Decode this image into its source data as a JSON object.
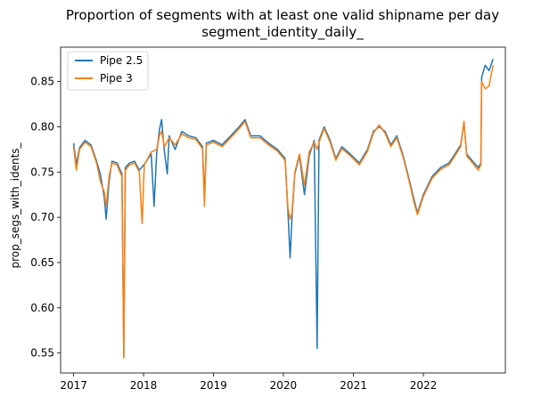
{
  "chart_data": {
    "type": "line",
    "title": "Proportion of segments with at least one valid shipname per day",
    "subtitle": "segment_identity_daily_",
    "xlabel": "",
    "ylabel": "prop_segs_with_idents_",
    "x_ticks": [
      "2017",
      "2018",
      "2019",
      "2020",
      "2021",
      "2022"
    ],
    "y_ticks": [
      "0.55",
      "0.60",
      "0.65",
      "0.70",
      "0.75",
      "0.80",
      "0.85"
    ],
    "xlim": [
      "2016-10-25",
      "2023-03-05"
    ],
    "ylim": [
      0.528,
      0.888
    ],
    "grid": false,
    "legend_position": "top-left",
    "series": [
      {
        "name": "Pipe 2.5",
        "color": "#1f77b4",
        "points": [
          [
            "2017-01-01",
            0.782
          ],
          [
            "2017-01-15",
            0.758
          ],
          [
            "2017-02-01",
            0.777
          ],
          [
            "2017-03-01",
            0.785
          ],
          [
            "2017-04-01",
            0.78
          ],
          [
            "2017-05-01",
            0.762
          ],
          [
            "2017-05-20",
            0.748
          ],
          [
            "2017-06-10",
            0.722
          ],
          [
            "2017-06-20",
            0.698
          ],
          [
            "2017-07-05",
            0.74
          ],
          [
            "2017-07-20",
            0.762
          ],
          [
            "2017-08-15",
            0.76
          ],
          [
            "2017-09-10",
            0.748
          ],
          [
            "2017-09-20",
            0.545
          ],
          [
            "2017-09-28",
            0.755
          ],
          [
            "2017-10-20",
            0.76
          ],
          [
            "2017-11-15",
            0.762
          ],
          [
            "2017-12-10",
            0.752
          ],
          [
            "2018-01-10",
            0.76
          ],
          [
            "2018-02-10",
            0.77
          ],
          [
            "2018-02-25",
            0.712
          ],
          [
            "2018-03-10",
            0.77
          ],
          [
            "2018-03-25",
            0.797
          ],
          [
            "2018-04-05",
            0.808
          ],
          [
            "2018-04-20",
            0.772
          ],
          [
            "2018-05-05",
            0.748
          ],
          [
            "2018-05-15",
            0.79
          ],
          [
            "2018-06-15",
            0.775
          ],
          [
            "2018-07-20",
            0.795
          ],
          [
            "2018-08-25",
            0.79
          ],
          [
            "2018-10-01",
            0.788
          ],
          [
            "2018-11-05",
            0.778
          ],
          [
            "2018-11-15",
            0.72
          ],
          [
            "2018-11-25",
            0.782
          ],
          [
            "2019-01-01",
            0.785
          ],
          [
            "2019-02-15",
            0.78
          ],
          [
            "2019-04-01",
            0.79
          ],
          [
            "2019-05-15",
            0.8
          ],
          [
            "2019-06-15",
            0.808
          ],
          [
            "2019-07-15",
            0.79
          ],
          [
            "2019-09-01",
            0.79
          ],
          [
            "2019-10-15",
            0.782
          ],
          [
            "2019-12-01",
            0.775
          ],
          [
            "2020-01-10",
            0.765
          ],
          [
            "2020-01-25",
            0.705
          ],
          [
            "2020-02-05",
            0.655
          ],
          [
            "2020-02-15",
            0.7
          ],
          [
            "2020-03-01",
            0.748
          ],
          [
            "2020-03-25",
            0.768
          ],
          [
            "2020-04-20",
            0.725
          ],
          [
            "2020-05-15",
            0.768
          ],
          [
            "2020-06-10",
            0.785
          ],
          [
            "2020-06-25",
            0.555
          ],
          [
            "2020-07-05",
            0.785
          ],
          [
            "2020-08-01",
            0.8
          ],
          [
            "2020-09-01",
            0.785
          ],
          [
            "2020-10-01",
            0.765
          ],
          [
            "2020-11-01",
            0.778
          ],
          [
            "2020-12-15",
            0.77
          ],
          [
            "2021-02-01",
            0.76
          ],
          [
            "2021-03-15",
            0.775
          ],
          [
            "2021-04-15",
            0.795
          ],
          [
            "2021-05-15",
            0.8
          ],
          [
            "2021-06-15",
            0.795
          ],
          [
            "2021-07-15",
            0.78
          ],
          [
            "2021-08-15",
            0.79
          ],
          [
            "2021-09-15",
            0.77
          ],
          [
            "2021-10-15",
            0.745
          ],
          [
            "2021-11-15",
            0.718
          ],
          [
            "2021-12-01",
            0.705
          ],
          [
            "2022-01-01",
            0.725
          ],
          [
            "2022-02-15",
            0.745
          ],
          [
            "2022-04-01",
            0.755
          ],
          [
            "2022-05-15",
            0.76
          ],
          [
            "2022-06-15",
            0.77
          ],
          [
            "2022-07-15",
            0.78
          ],
          [
            "2022-08-01",
            0.805
          ],
          [
            "2022-08-15",
            0.77
          ],
          [
            "2022-09-15",
            0.762
          ],
          [
            "2022-10-15",
            0.755
          ],
          [
            "2022-10-28",
            0.76
          ],
          [
            "2022-11-01",
            0.855
          ],
          [
            "2022-11-20",
            0.868
          ],
          [
            "2022-12-10",
            0.862
          ],
          [
            "2022-12-31",
            0.875
          ]
        ]
      },
      {
        "name": "Pipe 3",
        "color": "#ff7f0e",
        "points": [
          [
            "2017-01-01",
            0.778
          ],
          [
            "2017-01-15",
            0.752
          ],
          [
            "2017-02-01",
            0.775
          ],
          [
            "2017-03-01",
            0.783
          ],
          [
            "2017-04-01",
            0.778
          ],
          [
            "2017-05-01",
            0.76
          ],
          [
            "2017-05-20",
            0.74
          ],
          [
            "2017-06-10",
            0.728
          ],
          [
            "2017-06-20",
            0.712
          ],
          [
            "2017-07-05",
            0.745
          ],
          [
            "2017-07-20",
            0.76
          ],
          [
            "2017-08-15",
            0.758
          ],
          [
            "2017-09-10",
            0.745
          ],
          [
            "2017-09-20",
            0.545
          ],
          [
            "2017-09-28",
            0.752
          ],
          [
            "2017-10-20",
            0.758
          ],
          [
            "2017-11-15",
            0.76
          ],
          [
            "2017-12-10",
            0.75
          ],
          [
            "2017-12-25",
            0.693
          ],
          [
            "2018-01-05",
            0.758
          ],
          [
            "2018-02-10",
            0.772
          ],
          [
            "2018-03-10",
            0.775
          ],
          [
            "2018-03-25",
            0.79
          ],
          [
            "2018-04-05",
            0.795
          ],
          [
            "2018-04-20",
            0.778
          ],
          [
            "2018-05-15",
            0.788
          ],
          [
            "2018-06-15",
            0.78
          ],
          [
            "2018-07-20",
            0.792
          ],
          [
            "2018-08-25",
            0.788
          ],
          [
            "2018-10-01",
            0.786
          ],
          [
            "2018-11-05",
            0.776
          ],
          [
            "2018-11-15",
            0.712
          ],
          [
            "2018-11-25",
            0.78
          ],
          [
            "2019-01-01",
            0.783
          ],
          [
            "2019-02-15",
            0.778
          ],
          [
            "2019-04-01",
            0.788
          ],
          [
            "2019-05-15",
            0.798
          ],
          [
            "2019-06-15",
            0.806
          ],
          [
            "2019-07-15",
            0.788
          ],
          [
            "2019-09-01",
            0.788
          ],
          [
            "2019-10-15",
            0.78
          ],
          [
            "2019-12-01",
            0.773
          ],
          [
            "2020-01-10",
            0.763
          ],
          [
            "2020-01-25",
            0.71
          ],
          [
            "2020-02-05",
            0.698
          ],
          [
            "2020-02-15",
            0.705
          ],
          [
            "2020-03-01",
            0.75
          ],
          [
            "2020-03-25",
            0.77
          ],
          [
            "2020-04-20",
            0.735
          ],
          [
            "2020-05-15",
            0.772
          ],
          [
            "2020-06-10",
            0.783
          ],
          [
            "2020-06-25",
            0.775
          ],
          [
            "2020-07-05",
            0.783
          ],
          [
            "2020-08-01",
            0.798
          ],
          [
            "2020-09-01",
            0.783
          ],
          [
            "2020-10-01",
            0.763
          ],
          [
            "2020-11-01",
            0.776
          ],
          [
            "2020-12-15",
            0.768
          ],
          [
            "2021-02-01",
            0.758
          ],
          [
            "2021-03-15",
            0.773
          ],
          [
            "2021-04-15",
            0.793
          ],
          [
            "2021-05-15",
            0.802
          ],
          [
            "2021-06-15",
            0.793
          ],
          [
            "2021-07-15",
            0.778
          ],
          [
            "2021-08-15",
            0.788
          ],
          [
            "2021-09-15",
            0.768
          ],
          [
            "2021-10-15",
            0.743
          ],
          [
            "2021-11-15",
            0.715
          ],
          [
            "2021-12-01",
            0.703
          ],
          [
            "2022-01-01",
            0.723
          ],
          [
            "2022-02-15",
            0.743
          ],
          [
            "2022-04-01",
            0.753
          ],
          [
            "2022-05-15",
            0.758
          ],
          [
            "2022-06-15",
            0.768
          ],
          [
            "2022-07-15",
            0.778
          ],
          [
            "2022-08-01",
            0.806
          ],
          [
            "2022-08-15",
            0.768
          ],
          [
            "2022-09-15",
            0.76
          ],
          [
            "2022-10-15",
            0.752
          ],
          [
            "2022-10-28",
            0.758
          ],
          [
            "2022-11-01",
            0.85
          ],
          [
            "2022-11-20",
            0.842
          ],
          [
            "2022-12-10",
            0.845
          ],
          [
            "2022-12-31",
            0.868
          ]
        ]
      }
    ]
  }
}
